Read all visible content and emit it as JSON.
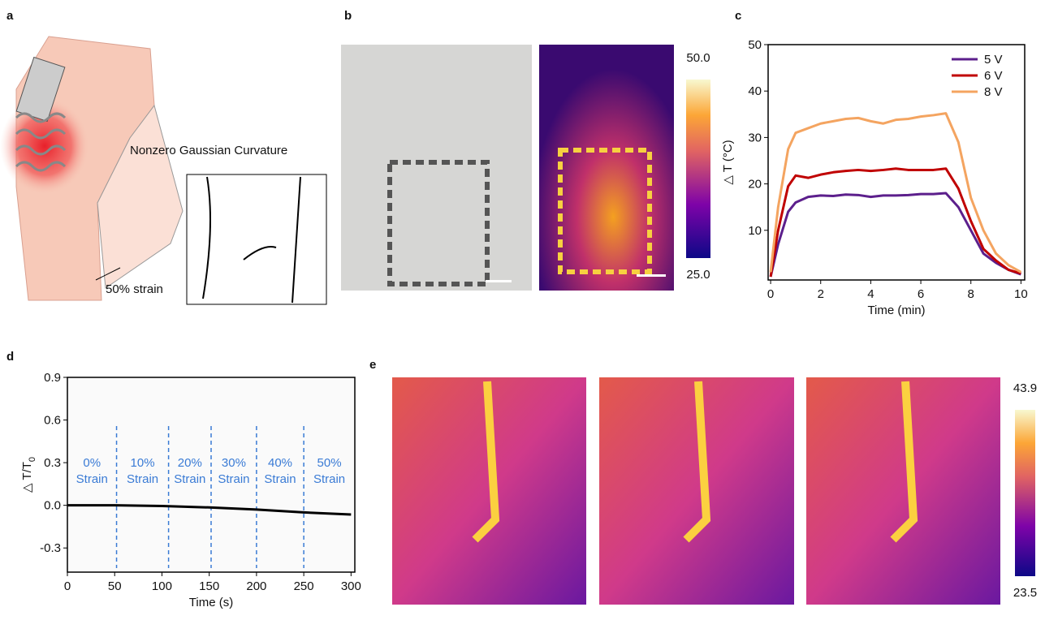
{
  "panels": {
    "a": "a",
    "b": "b",
    "c": "c",
    "d": "d",
    "e": "e"
  },
  "panel_a": {
    "curvature_label": "Nonzero Gaussian Curvature",
    "strain_label": "50% strain"
  },
  "panel_b": {
    "colorbar": {
      "ticks": [
        {
          "value": 25,
          "label": "25.0"
        },
        {
          "value": 50,
          "label": "50.0"
        }
      ]
    }
  },
  "panel_e": {
    "colorbar": {
      "ticks": [
        23.5,
        43.9
      ]
    }
  },
  "chart_data": [
    {
      "type": "line",
      "xlabel": "Time (min)",
      "ylabel": "△ T (°C)",
      "x": [
        0,
        0.3,
        0.7,
        1,
        1.5,
        2,
        2.5,
        3,
        3.5,
        4,
        4.5,
        5,
        5.5,
        6,
        6.5,
        7,
        7.5,
        8,
        8.5,
        9,
        9.5,
        10
      ],
      "series": [
        {
          "name": "5 V",
          "color": "#5c1f8c",
          "values": [
            0,
            7,
            14,
            16,
            17.2,
            17.5,
            17.4,
            17.7,
            17.6,
            17.2,
            17.5,
            17.5,
            17.6,
            17.8,
            17.8,
            18,
            15,
            10,
            5,
            3,
            1.5,
            0.5
          ]
        },
        {
          "name": "6 V",
          "color": "#c00000",
          "values": [
            0,
            10,
            19.5,
            21.8,
            21.3,
            22,
            22.5,
            22.8,
            23,
            22.8,
            23,
            23.3,
            23,
            23,
            23,
            23.3,
            19,
            12,
            6,
            3.5,
            1.5,
            0.7
          ]
        },
        {
          "name": "8 V",
          "color": "#f4a460",
          "values": [
            1,
            15,
            27.5,
            31,
            32,
            33,
            33.5,
            34,
            34.2,
            33.5,
            33,
            33.8,
            34,
            34.5,
            34.8,
            35.2,
            29,
            17,
            10,
            5,
            2.5,
            1
          ]
        }
      ],
      "xlim": [
        -0.1,
        10.15
      ],
      "xticks": [
        0,
        2,
        4,
        6,
        8,
        10
      ],
      "ylim": [
        -0.7,
        50
      ],
      "yticks": [
        10,
        20,
        30,
        40,
        50
      ],
      "legend": "top-right"
    },
    {
      "type": "line",
      "xlabel": "Time (s)",
      "ylabel": "△ T/T",
      "ylabel_sub": "0",
      "x": [
        0,
        50,
        100,
        150,
        200,
        250,
        300
      ],
      "series": [
        {
          "color": "#000000",
          "values": [
            0,
            0,
            -0.005,
            -0.015,
            -0.03,
            -0.05,
            -0.065
          ]
        }
      ],
      "xlim": [
        0,
        304
      ],
      "xticks": [
        0,
        50,
        100,
        150,
        200,
        250,
        300
      ],
      "ylim": [
        -0.47,
        0.9
      ],
      "yticks": [
        {
          "value": -0.3,
          "label": "-0.3"
        },
        {
          "value": 0,
          "label": "0.0"
        },
        0.3,
        0.6,
        0.9
      ],
      "dividers": [
        52,
        107,
        152,
        200,
        250
      ],
      "divider_color": "#3a7bd5",
      "regions": [
        [
          "0%",
          "Strain"
        ],
        [
          "10%",
          "Strain"
        ],
        [
          "20%",
          "Strain"
        ],
        [
          "30%",
          "Strain"
        ],
        [
          "40%",
          "Strain"
        ],
        [
          "50%",
          "Strain"
        ]
      ]
    }
  ]
}
